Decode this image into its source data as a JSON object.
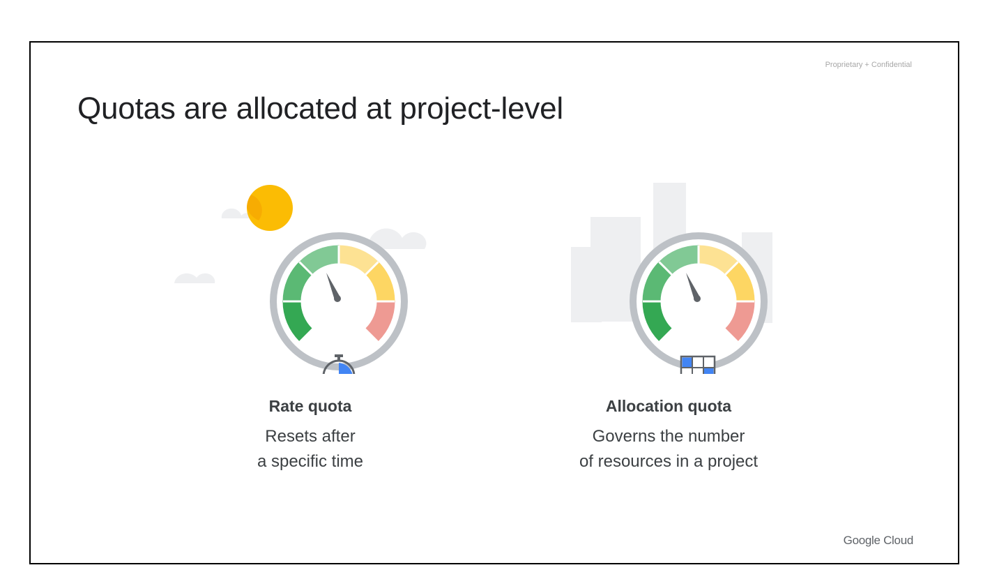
{
  "slide": {
    "confidential_label": "Proprietary + Confidential",
    "title": "Quotas are allocated at project-level",
    "brand": "Google Cloud"
  },
  "cards": [
    {
      "heading": "Rate quota",
      "description_line1": "Resets after",
      "description_line2": "a specific time",
      "icon": "stopwatch-icon"
    },
    {
      "heading": "Allocation quota",
      "description_line1": "Governs the number",
      "description_line2": "of resources in a project",
      "icon": "grid-table-icon"
    }
  ],
  "colors": {
    "gauge_ring": "#bdc1c6",
    "green_dark": "#34a853",
    "green_mid": "#5bb974",
    "green_light": "#81c995",
    "yellow_light": "#fde293",
    "yellow": "#fdd663",
    "red": "#ee9a93",
    "needle": "#5f6368",
    "sun": "#fbbc04",
    "accent_blue": "#4285f4"
  }
}
